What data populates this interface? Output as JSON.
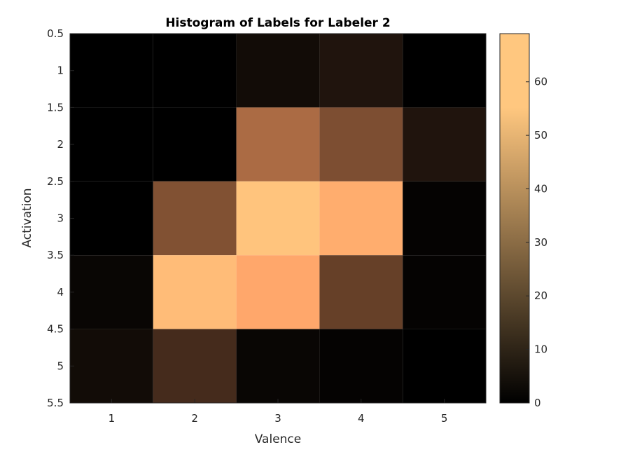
{
  "chart_data": {
    "type": "heatmap",
    "title": "Histogram of Labels for Labeler 2",
    "xlabel": "Valence",
    "ylabel": "Activation",
    "x_categories": [
      1,
      2,
      3,
      4,
      5
    ],
    "y_categories": [
      1,
      2,
      3,
      4,
      5
    ],
    "x_tick_labels": [
      "1",
      "2",
      "3",
      "4",
      "5"
    ],
    "y_tick_labels": [
      "0.5",
      "1",
      "1.5",
      "2",
      "2.5",
      "3",
      "3.5",
      "4",
      "4.5",
      "5",
      "5.5"
    ],
    "xlim": [
      0.5,
      5.5
    ],
    "ylim": [
      0.5,
      5.5
    ],
    "y_reversed": true,
    "values": [
      [
        0,
        0,
        4,
        7,
        0
      ],
      [
        0,
        0,
        37,
        27,
        7
      ],
      [
        0,
        28,
        68,
        60,
        1
      ],
      [
        2,
        65,
        58,
        22,
        1
      ],
      [
        4,
        15,
        2,
        1,
        0
      ]
    ],
    "colormap": "copper",
    "colorbar": {
      "min": 0,
      "max": 69,
      "ticks": [
        0,
        10,
        20,
        30,
        40,
        50,
        60
      ],
      "tick_labels": [
        "0",
        "10",
        "20",
        "30",
        "40",
        "50",
        "60"
      ]
    },
    "grid": false,
    "legend": "none"
  }
}
